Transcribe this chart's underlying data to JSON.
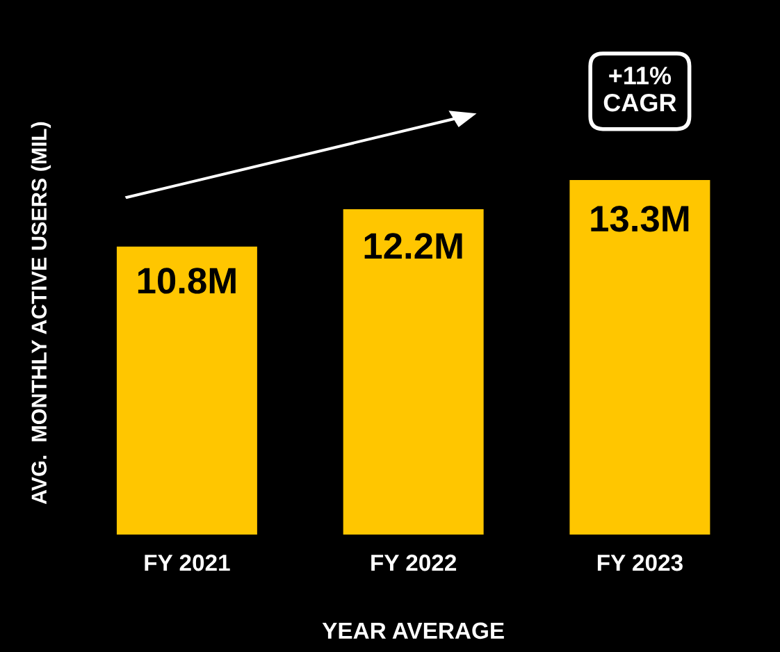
{
  "chart_data": {
    "type": "bar",
    "categories": [
      "FY 2021",
      "FY 2022",
      "FY 2023"
    ],
    "values": [
      10.8,
      12.2,
      13.3
    ],
    "value_labels": [
      "10.8M",
      "12.2M",
      "13.3M"
    ],
    "color": "#ffc600",
    "xlabel": "YEAR AVERAGE",
    "ylabel": "AVG.  MONTHLY ACTIVE USERS (MIL)",
    "annotations": [
      "+11%\nCAGR"
    ],
    "tick_labels": "x",
    "grid": false,
    "legend": false
  }
}
